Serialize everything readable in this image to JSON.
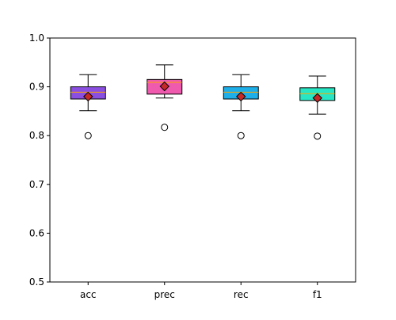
{
  "chart_data": {
    "type": "box",
    "categories": [
      "acc",
      "prec",
      "rec",
      "f1"
    ],
    "ylim": [
      0.5,
      1.0
    ],
    "yticks": [
      0.5,
      0.6,
      0.7,
      0.8,
      0.9,
      1.0
    ],
    "ytick_labels": [
      "0.5",
      "0.6",
      "0.7",
      "0.8",
      "0.9",
      "1.0"
    ],
    "grid": false,
    "title": "",
    "xlabel": "",
    "ylabel": "",
    "boxes": [
      {
        "category": "acc",
        "whisker_low": 0.851,
        "q1": 0.875,
        "median": 0.889,
        "q3": 0.9,
        "whisker_high": 0.925,
        "mean": 0.88,
        "outliers": [
          0.8
        ],
        "color": "#8a4fe0"
      },
      {
        "category": "prec",
        "whisker_low": 0.877,
        "q1": 0.885,
        "median": 0.909,
        "q3": 0.915,
        "whisker_high": 0.945,
        "mean": 0.901,
        "outliers": [
          0.817
        ],
        "color": "#f05aae"
      },
      {
        "category": "rec",
        "whisker_low": 0.851,
        "q1": 0.875,
        "median": 0.889,
        "q3": 0.9,
        "whisker_high": 0.925,
        "mean": 0.88,
        "outliers": [
          0.8
        ],
        "color": "#1eaee8"
      },
      {
        "category": "f1",
        "whisker_low": 0.844,
        "q1": 0.872,
        "median": 0.886,
        "q3": 0.898,
        "whisker_high": 0.922,
        "mean": 0.877,
        "outliers": [
          0.799
        ],
        "color": "#27e6c4"
      }
    ],
    "median_line_color": "#ffa500",
    "mean_marker_color": "#c62828"
  }
}
